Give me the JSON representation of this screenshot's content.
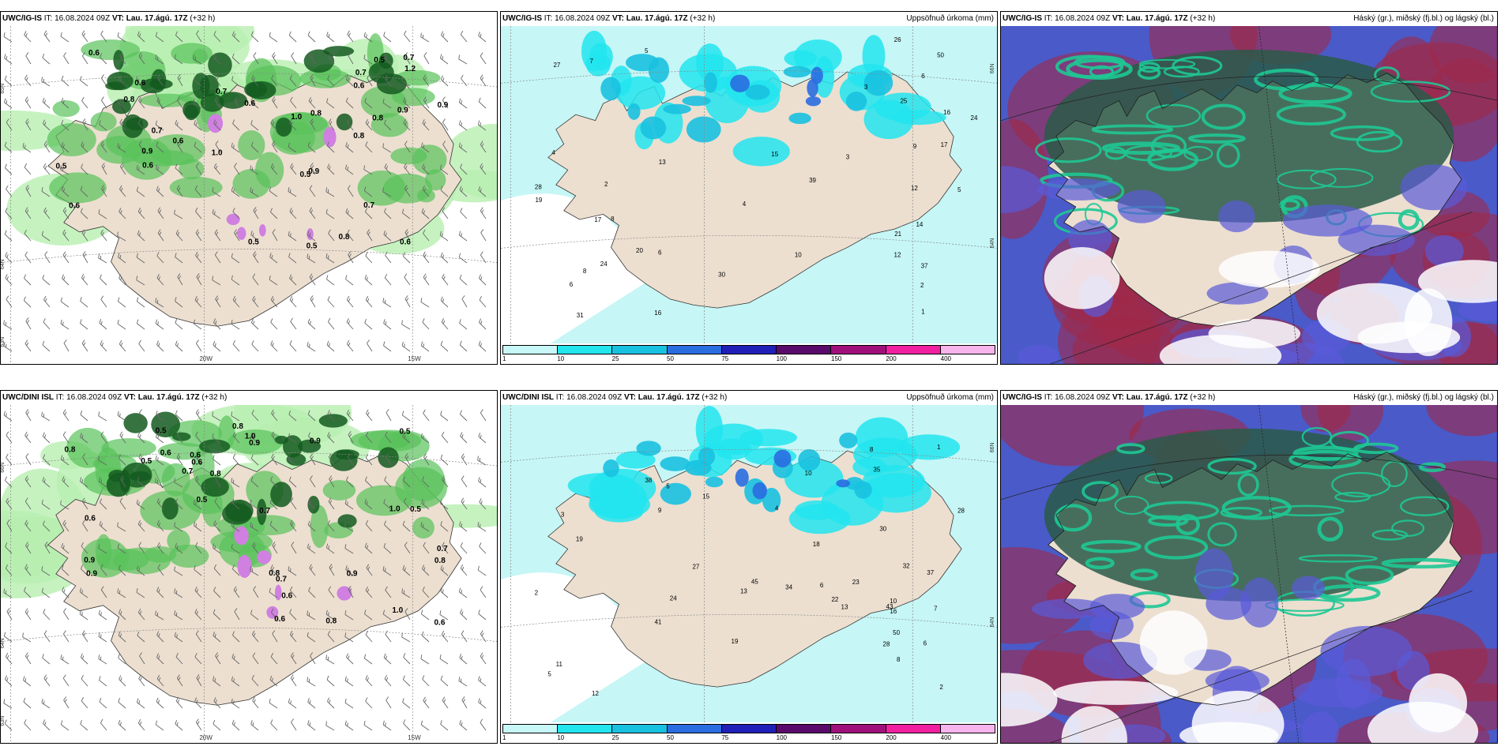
{
  "top": {
    "wind": {
      "model": "UWC/IG-IS",
      "it_label": "IT:",
      "it_value": "16.08.2024 09Z",
      "vt_label": "VT:",
      "vt_value": "Lau. 17.ágú. 17Z",
      "lead": "(+32 h)",
      "lat_labels": [
        "65N",
        "64N",
        "63N"
      ],
      "lon_labels": [
        "20W",
        "15W"
      ],
      "values": [
        "0.9",
        "0.5",
        "0.8",
        "0.6",
        "0.5",
        "0.7",
        "0.8",
        "0.6",
        "1.0",
        "0.9",
        "0.7",
        "0.8",
        "0.6",
        "0.5",
        "0.7",
        "0.9",
        "1.2",
        "0.8",
        "0.5",
        "0.6",
        "0.7",
        "1.0",
        "0.6",
        "0.9",
        "0.6",
        "0.5",
        "0.8",
        "0.6",
        "0.7",
        "0.6"
      ]
    },
    "precip": {
      "model": "UWC/IG-IS",
      "it_label": "IT:",
      "it_value": "16.08.2024 09Z",
      "vt_label": "VT:",
      "vt_value": "Lau. 17.ágú. 17Z",
      "lead": "(+32 h)",
      "right_title": "Uppsöfnuð úrkoma (mm)",
      "lat_labels": [
        "66N",
        "64N"
      ],
      "values": [
        "2",
        "8",
        "6",
        "12",
        "8",
        "5",
        "6",
        "26",
        "17",
        "28",
        "39",
        "31",
        "50",
        "14",
        "21",
        "24",
        "37",
        "30",
        "27",
        "24",
        "20",
        "16",
        "15",
        "10",
        "17",
        "12",
        "25",
        "19",
        "16",
        "13",
        "9",
        "7",
        "6",
        "4",
        "3",
        "2",
        "1",
        "4",
        "5",
        "3"
      ]
    },
    "cloud": {
      "model": "UWC/IG-IS",
      "it_label": "IT:",
      "it_value": "16.08.2024 09Z",
      "vt_label": "VT:",
      "vt_value": "Lau. 17.ágú. 17Z",
      "lead": "(+32 h)",
      "right_title": "Háský (gr.), miðský (fj.bl.) og lágský (bl.)"
    }
  },
  "bottom": {
    "wind": {
      "model": "UWC/DINI ISL",
      "it_label": "IT:",
      "it_value": "16.08.2024 09Z",
      "vt_label": "VT:",
      "vt_value": "Lau. 17.ágú. 17Z",
      "lead": "(+32 h)",
      "lat_labels": [
        "66N",
        "64N",
        "63N"
      ],
      "lon_labels": [
        "20W",
        "15W"
      ],
      "values": [
        "0.9",
        "0.5",
        "0.6",
        "1.0",
        "0.8",
        "0.7",
        "0.6",
        "0.9",
        "0.5",
        "0.8",
        "0.7",
        "0.6",
        "1.0",
        "0.9",
        "0.8",
        "0.7",
        "0.5",
        "0.6",
        "0.8",
        "0.9",
        "0.6",
        "0.8",
        "0.5",
        "0.7",
        "0.6",
        "0.9",
        "1.0",
        "0.8",
        "0.6",
        "0.5"
      ]
    },
    "precip": {
      "model": "UWC/DINI ISL",
      "it_label": "IT:",
      "it_value": "16.08.2024 09Z",
      "vt_label": "VT:",
      "vt_value": "Lau. 17.ágú. 17Z",
      "lead": "(+32 h)",
      "right_title": "Uppsöfnuð úrkoma (mm)",
      "lat_labels": [
        "66N",
        "64N"
      ],
      "values": [
        "2",
        "10",
        "6",
        "12",
        "8",
        "5",
        "38",
        "41",
        "28",
        "13",
        "45",
        "35",
        "43",
        "50",
        "28",
        "37",
        "34",
        "27",
        "24",
        "19",
        "16",
        "15",
        "23",
        "13",
        "19",
        "30",
        "22",
        "32",
        "10",
        "8",
        "6",
        "4",
        "3",
        "2",
        "1",
        "7",
        "9",
        "11",
        "18",
        "5"
      ]
    },
    "cloud": {
      "model": "UWC/IG-IS",
      "it_label": "IT:",
      "it_value": "16.08.2024 09Z",
      "vt_label": "VT:",
      "vt_value": "Lau. 17.ágú. 17Z",
      "lead": "(+32 h)",
      "right_title": "Háský (gr.), miðský (fj.bl.) og lágský (bl.)"
    }
  },
  "legend": {
    "labels": [
      "1",
      "10",
      "25",
      "50",
      "75",
      "100",
      "150",
      "200",
      "400"
    ],
    "colors": [
      "#c8f7f7",
      "#22e5ee",
      "#19c1e0",
      "#2a6de0",
      "#2020b8",
      "#5a0a6a",
      "#a0107a",
      "#f020a0",
      "#f8b4ec"
    ]
  },
  "colors": {
    "land": "#ecdfd0",
    "sea_green": "#b8efb0",
    "mid_green": "#58c25a",
    "dark_green": "#145a20",
    "precip_bg": "#c6f6f6",
    "cloud_red": "#a02848",
    "cloud_blue": "#5a5ad8",
    "cloud_teal": "#1ec894"
  }
}
